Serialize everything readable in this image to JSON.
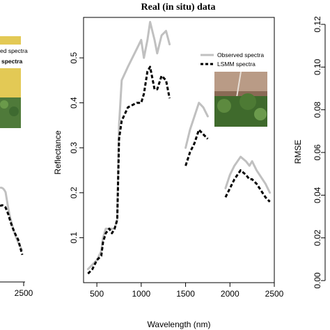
{
  "left_panel": {
    "legend": {
      "observed_partial": "ed spectra",
      "lsmm_partial": "spectra"
    },
    "x_tick_label": "2500",
    "colors": {
      "photo_yellow": "#e3c955",
      "photo_green": "#4f7a3a"
    }
  },
  "right_panel": {
    "y_label": "RMSE",
    "y_ticks": [
      "0.12",
      "0.10",
      "0.08",
      "0.06",
      "0.04",
      "0.02",
      "0.00"
    ]
  },
  "chart_data": {
    "type": "line",
    "title": "Real (in situ) data",
    "xlabel": "Wavelength (nm)",
    "ylabel": "Reflectance",
    "xlim": [
      350,
      2500
    ],
    "ylim": [
      0,
      0.59
    ],
    "x_ticks": [
      500,
      1000,
      1500,
      2000,
      2500
    ],
    "y_ticks": [
      0.1,
      0.2,
      0.3,
      0.4,
      0.5
    ],
    "x_tick_labels": [
      "500",
      "1000",
      "1500",
      "2000",
      "2500"
    ],
    "y_tick_labels": [
      "0.1",
      "0.2",
      "0.3",
      "0.4",
      "0.5"
    ],
    "legend_position": "top-right",
    "series": [
      {
        "name": "Observed spectra",
        "color": "#c0c0c0",
        "style": "solid",
        "segments": [
          [
            [
              400,
              0.03
            ],
            [
              450,
              0.04
            ],
            [
              500,
              0.05
            ],
            [
              550,
              0.07
            ],
            [
              570,
              0.1
            ],
            [
              600,
              0.12
            ],
            [
              640,
              0.12
            ],
            [
              670,
              0.12
            ],
            [
              700,
              0.12
            ],
            [
              730,
              0.14
            ],
            [
              750,
              0.35
            ],
            [
              780,
              0.45
            ],
            [
              850,
              0.48
            ],
            [
              950,
              0.52
            ],
            [
              1000,
              0.54
            ],
            [
              1030,
              0.5
            ],
            [
              1070,
              0.54
            ],
            [
              1100,
              0.58
            ],
            [
              1150,
              0.54
            ],
            [
              1180,
              0.51
            ],
            [
              1230,
              0.55
            ],
            [
              1280,
              0.56
            ],
            [
              1320,
              0.53
            ]
          ],
          [
            [
              1500,
              0.3
            ],
            [
              1550,
              0.34
            ],
            [
              1600,
              0.37
            ],
            [
              1650,
              0.4
            ],
            [
              1700,
              0.39
            ],
            [
              1750,
              0.37
            ]
          ],
          [
            [
              1950,
              0.21
            ],
            [
              2000,
              0.24
            ],
            [
              2050,
              0.26
            ],
            [
              2120,
              0.28
            ],
            [
              2180,
              0.27
            ],
            [
              2220,
              0.26
            ],
            [
              2250,
              0.27
            ],
            [
              2300,
              0.25
            ],
            [
              2400,
              0.22
            ],
            [
              2450,
              0.2
            ]
          ]
        ]
      },
      {
        "name": "LSMM spectra",
        "color": "#000000",
        "style": "dashed",
        "segments": [
          [
            [
              400,
              0.02
            ],
            [
              450,
              0.03
            ],
            [
              500,
              0.05
            ],
            [
              550,
              0.06
            ],
            [
              570,
              0.09
            ],
            [
              600,
              0.11
            ],
            [
              640,
              0.12
            ],
            [
              670,
              0.11
            ],
            [
              700,
              0.12
            ],
            [
              730,
              0.14
            ],
            [
              750,
              0.32
            ],
            [
              780,
              0.36
            ],
            [
              850,
              0.39
            ],
            [
              950,
              0.4
            ],
            [
              1000,
              0.4
            ],
            [
              1030,
              0.42
            ],
            [
              1070,
              0.47
            ],
            [
              1100,
              0.48
            ],
            [
              1150,
              0.43
            ],
            [
              1180,
              0.43
            ],
            [
              1230,
              0.46
            ],
            [
              1280,
              0.45
            ],
            [
              1320,
              0.41
            ]
          ],
          [
            [
              1500,
              0.26
            ],
            [
              1550,
              0.29
            ],
            [
              1600,
              0.31
            ],
            [
              1650,
              0.34
            ],
            [
              1700,
              0.33
            ],
            [
              1750,
              0.32
            ]
          ],
          [
            [
              1950,
              0.19
            ],
            [
              2000,
              0.21
            ],
            [
              2050,
              0.23
            ],
            [
              2120,
              0.25
            ],
            [
              2180,
              0.24
            ],
            [
              2220,
              0.23
            ],
            [
              2250,
              0.23
            ],
            [
              2300,
              0.22
            ],
            [
              2400,
              0.19
            ],
            [
              2450,
              0.18
            ]
          ]
        ]
      }
    ]
  }
}
